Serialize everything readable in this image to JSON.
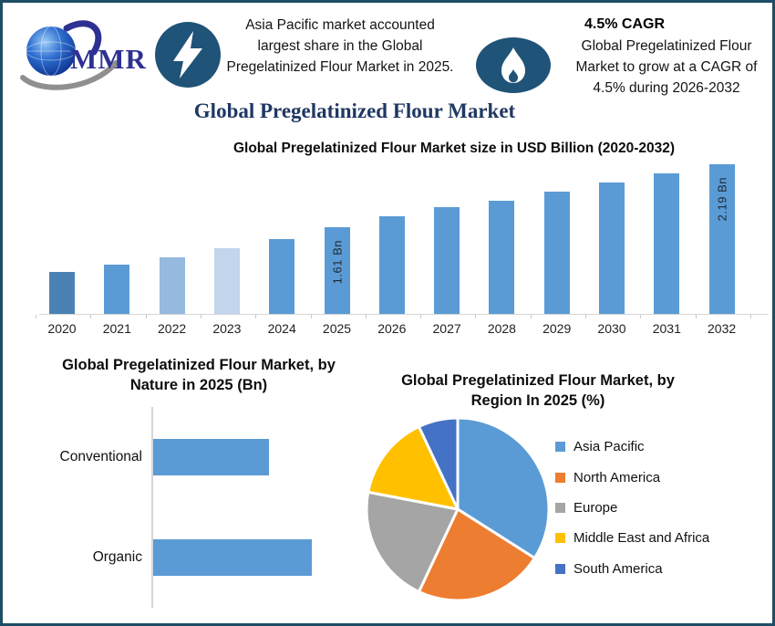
{
  "header": {
    "logo_text": "MMR",
    "highlight1_text": "Asia Pacific market accounted largest share in the Global Pregelatinized Flour Market in 2025.",
    "cagr_heading": "4.5% CAGR",
    "cagr_text": "Global Pregelatinized Flour Market to grow at a CAGR of 4.5% during 2026-2032"
  },
  "main_title": "Global Pregelatinized Flour Market",
  "colors": {
    "page_border": "#1D4E66",
    "icon_badge": "#1F5377",
    "title_navy": "#1F3864",
    "logo_blue": "#2E3192",
    "bar_default": "#5B9BD5",
    "axis_gray": "#d6d6d6"
  },
  "chart_data": [
    {
      "type": "bar",
      "title": "Global Pregelatinized Flour Market size in USD Billion (2020-2032)",
      "categories": [
        "2020",
        "2021",
        "2022",
        "2023",
        "2024",
        "2025",
        "2026",
        "2027",
        "2028",
        "2029",
        "2030",
        "2031",
        "2032"
      ],
      "values": [
        1.19,
        1.26,
        1.33,
        1.41,
        1.5,
        1.61,
        1.71,
        1.79,
        1.85,
        1.94,
        2.02,
        2.11,
        2.19
      ],
      "unit": "USD Billion",
      "data_labels": {
        "2025": "1.61 Bn",
        "2032": "2.19 Bn"
      },
      "ylim": [
        0.8,
        2.2
      ],
      "grid": false,
      "legend": "none",
      "bar_colors": [
        "#4B82B6",
        "#5B9BD5",
        "#95B9DF",
        "#C3D5EC",
        "#5B9BD5",
        "#5B9BD5",
        "#5B9BD5",
        "#5B9BD5",
        "#5B9BD5",
        "#5B9BD5",
        "#5B9BD5",
        "#5B9BD5",
        "#5B9BD5"
      ],
      "default_color": "#5B9BD5"
    },
    {
      "type": "bar",
      "orientation": "horizontal",
      "title": "Global Pregelatinized Flour Market, by Nature in 2025 (Bn)",
      "categories": [
        "Conventional",
        "Organic"
      ],
      "values": [
        0.68,
        0.93
      ],
      "unit": "Bn",
      "xlim": [
        0,
        1.26
      ],
      "grid": false,
      "legend": "none",
      "bar_color": "#5B9BD5"
    },
    {
      "type": "pie",
      "title": "Global Pregelatinized Flour Market, by Region In 2025 (%)",
      "labels": [
        "Asia Pacific",
        "North America",
        "Europe",
        "Middle East and Africa",
        "South America"
      ],
      "values": [
        34,
        23,
        21,
        15,
        7
      ],
      "unit": "%",
      "colors": [
        "#5B9BD5",
        "#ED7D31",
        "#A5A5A5",
        "#FFC000",
        "#4472C4"
      ],
      "legend_position": "right",
      "start_angle_deg": 0
    }
  ]
}
